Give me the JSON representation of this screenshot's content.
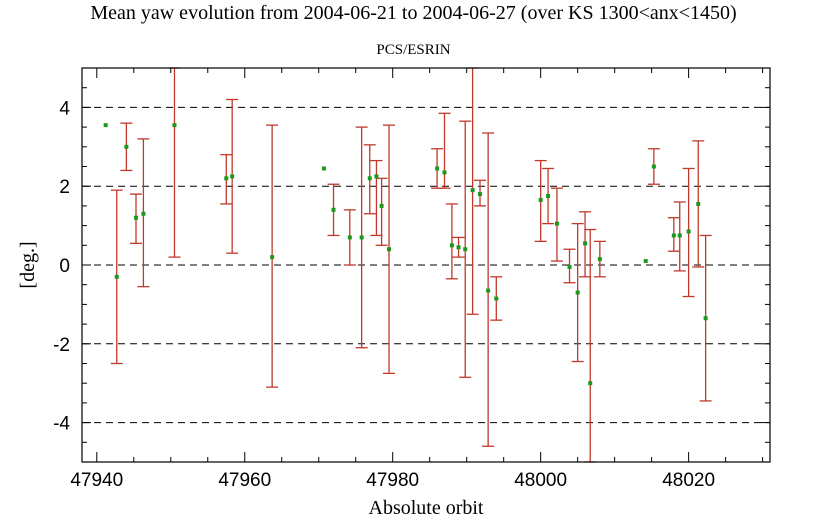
{
  "chart_data": {
    "type": "scatter",
    "title": "Mean yaw evolution from 2004-06-21 to 2004-06-27 (over KS 1300<anx<1450)",
    "subtitle": "PCS/ESRIN",
    "xlabel": "Absolute orbit",
    "ylabel": "[deg.]",
    "xlim": [
      47938,
      48031
    ],
    "ylim": [
      -5,
      5
    ],
    "xticks": [
      47940,
      47960,
      47980,
      48000,
      48020
    ],
    "yticks": [
      -4,
      -2,
      0,
      2,
      4
    ],
    "grid": "dashed horizontal lines at y = -4, -2, 0, 2, 4",
    "legend": "none",
    "colors": {
      "point": "#1a9a1a",
      "errorbar": "#c0392b",
      "gridline": "#000000"
    },
    "points": [
      {
        "x": 47941.2,
        "y": 3.55,
        "low": 3.55,
        "high": 3.55
      },
      {
        "x": 47942.7,
        "y": -0.3,
        "low": -2.5,
        "high": 1.9
      },
      {
        "x": 47944.0,
        "y": 3.0,
        "low": 2.4,
        "high": 3.6
      },
      {
        "x": 47945.3,
        "y": 1.2,
        "low": 0.55,
        "high": 1.8
      },
      {
        "x": 47946.3,
        "y": 1.3,
        "low": -0.55,
        "high": 3.2
      },
      {
        "x": 47950.5,
        "y": 3.55,
        "low": 0.2,
        "high": 5.0
      },
      {
        "x": 47957.5,
        "y": 2.2,
        "low": 1.55,
        "high": 2.8
      },
      {
        "x": 47958.3,
        "y": 2.25,
        "low": 0.3,
        "high": 4.2
      },
      {
        "x": 47963.7,
        "y": 0.2,
        "low": -3.1,
        "high": 3.55
      },
      {
        "x": 47970.7,
        "y": 2.45,
        "low": 2.45,
        "high": 2.45
      },
      {
        "x": 47972.0,
        "y": 1.4,
        "low": 0.75,
        "high": 2.05
      },
      {
        "x": 47974.2,
        "y": 0.7,
        "low": 0.0,
        "high": 1.4
      },
      {
        "x": 47975.8,
        "y": 0.7,
        "low": -2.1,
        "high": 3.5
      },
      {
        "x": 47976.9,
        "y": 2.2,
        "low": 1.3,
        "high": 3.05
      },
      {
        "x": 47977.8,
        "y": 2.25,
        "low": 0.75,
        "high": 2.65
      },
      {
        "x": 47978.5,
        "y": 1.5,
        "low": 0.5,
        "high": 2.2
      },
      {
        "x": 47979.5,
        "y": 0.4,
        "low": -2.75,
        "high": 3.55
      },
      {
        "x": 47986.0,
        "y": 2.45,
        "low": 1.95,
        "high": 2.95
      },
      {
        "x": 47987.0,
        "y": 2.35,
        "low": 1.95,
        "high": 3.85
      },
      {
        "x": 47988.0,
        "y": 0.5,
        "low": -0.35,
        "high": 1.55
      },
      {
        "x": 47988.9,
        "y": 0.45,
        "low": 0.2,
        "high": 0.7
      },
      {
        "x": 47989.8,
        "y": 0.4,
        "low": -2.85,
        "high": 3.65
      },
      {
        "x": 47990.8,
        "y": 1.9,
        "low": -1.25,
        "high": 5.0
      },
      {
        "x": 47991.8,
        "y": 1.8,
        "low": 1.5,
        "high": 2.15
      },
      {
        "x": 47992.9,
        "y": -0.65,
        "low": -4.6,
        "high": 3.35
      },
      {
        "x": 47994.0,
        "y": -0.85,
        "low": -1.4,
        "high": -0.3
      },
      {
        "x": 48000.0,
        "y": 1.65,
        "low": 0.6,
        "high": 2.65
      },
      {
        "x": 48001.0,
        "y": 1.75,
        "low": 1.05,
        "high": 2.45
      },
      {
        "x": 48002.2,
        "y": 1.05,
        "low": 0.1,
        "high": 1.95
      },
      {
        "x": 48003.9,
        "y": -0.05,
        "low": -0.45,
        "high": 0.4
      },
      {
        "x": 48005.0,
        "y": -0.7,
        "low": -2.45,
        "high": 1.05
      },
      {
        "x": 48006.0,
        "y": 0.55,
        "low": -0.3,
        "high": 1.35
      },
      {
        "x": 48006.7,
        "y": -3.0,
        "low": -5.0,
        "high": 0.9
      },
      {
        "x": 48008.0,
        "y": 0.15,
        "low": -0.3,
        "high": 0.6
      },
      {
        "x": 48014.2,
        "y": 0.1,
        "low": 0.1,
        "high": 0.1
      },
      {
        "x": 48015.3,
        "y": 2.5,
        "low": 2.05,
        "high": 2.95
      },
      {
        "x": 48018.0,
        "y": 0.75,
        "low": 0.35,
        "high": 1.2
      },
      {
        "x": 48018.8,
        "y": 0.75,
        "low": -0.15,
        "high": 1.6
      },
      {
        "x": 48020.0,
        "y": 0.85,
        "low": -0.8,
        "high": 2.45
      },
      {
        "x": 48021.3,
        "y": 1.55,
        "low": -0.05,
        "high": 3.15
      },
      {
        "x": 48022.3,
        "y": -1.35,
        "low": -3.45,
        "high": 0.75
      }
    ]
  }
}
